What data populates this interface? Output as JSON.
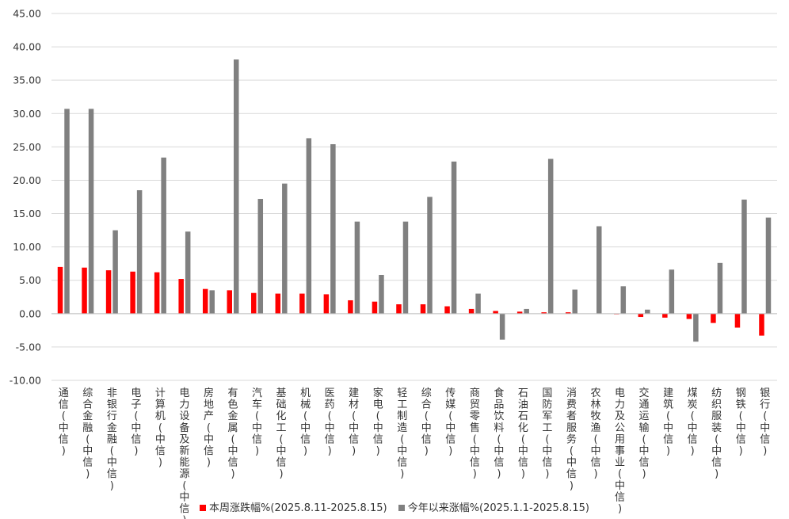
{
  "chart_data": {
    "type": "bar",
    "title": "",
    "xlabel": "",
    "ylabel": "",
    "ylim": [
      -10,
      45
    ],
    "yticks": [
      "-10.00",
      "-5.00",
      "0.00",
      "5.00",
      "10.00",
      "15.00",
      "20.00",
      "25.00",
      "30.00",
      "35.00",
      "40.00",
      "45.00"
    ],
    "grid": true,
    "legend_position": "bottom",
    "categories": [
      "通信(中信)",
      "综合金融(中信)",
      "非银行金融(中信)",
      "电子(中信)",
      "计算机(中信)",
      "电力设备及新能源(中信)",
      "房地产(中信)",
      "有色金属(中信)",
      "汽车(中信)",
      "基础化工(中信)",
      "机械(中信)",
      "医药(中信)",
      "建材(中信)",
      "家电(中信)",
      "轻工制造(中信)",
      "综合(中信)",
      "传媒(中信)",
      "商贸零售(中信)",
      "食品饮料(中信)",
      "石油石化(中信)",
      "国防军工(中信)",
      "消费者服务(中信)",
      "农林牧渔(中信)",
      "电力及公用事业(中信)",
      "交通运输(中信)",
      "建筑(中信)",
      "煤炭(中信)",
      "纺织服装(中信)",
      "钢铁(中信)",
      "银行(中信)"
    ],
    "series": [
      {
        "name": "本周涨跌幅%(2025.8.11-2025.8.15)",
        "color": "#ff0000",
        "values": [
          7.0,
          6.9,
          6.5,
          6.3,
          6.2,
          5.2,
          3.7,
          3.5,
          3.1,
          3.0,
          3.0,
          2.9,
          2.0,
          1.8,
          1.4,
          1.4,
          1.1,
          0.7,
          0.4,
          0.3,
          0.2,
          0.2,
          0.0,
          -0.1,
          -0.5,
          -0.6,
          -0.8,
          -1.4,
          -2.1,
          -3.3
        ]
      },
      {
        "name": "今年以来涨幅%(2025.1.1-2025.8.15)",
        "color": "#808080",
        "values": [
          30.7,
          30.7,
          12.5,
          18.5,
          23.4,
          12.3,
          3.5,
          38.1,
          17.2,
          19.5,
          26.3,
          25.4,
          13.8,
          5.8,
          13.8,
          17.5,
          22.8,
          3.0,
          -3.9,
          0.7,
          23.2,
          3.6,
          13.1,
          4.1,
          0.6,
          6.6,
          -4.2,
          7.6,
          17.1,
          14.4
        ]
      }
    ]
  }
}
